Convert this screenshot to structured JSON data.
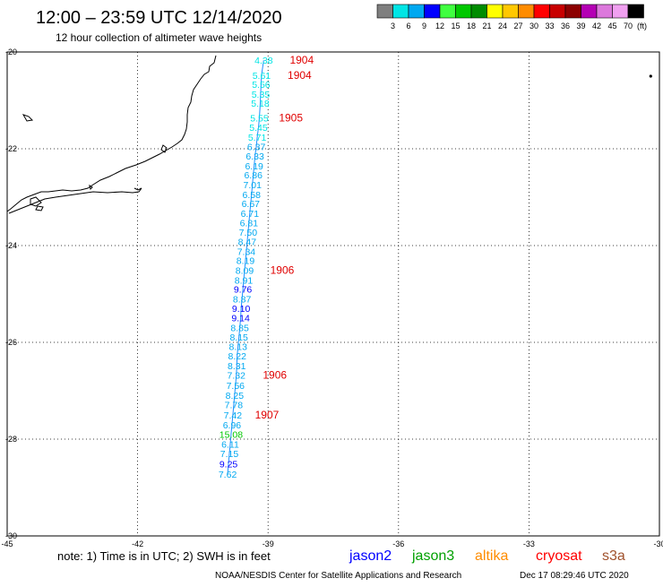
{
  "header": {
    "title": "12:00 – 23:59 UTC 12/14/2020",
    "subtitle": "12 hour collection of altimeter wave heights"
  },
  "legend": {
    "unit": "(ft)",
    "bins": [
      {
        "label": "3",
        "color": "#7f7f7f"
      },
      {
        "label": "6",
        "color": "#00e5e5"
      },
      {
        "label": "9",
        "color": "#00a8f0"
      },
      {
        "label": "12",
        "color": "#0000ff"
      },
      {
        "label": "15",
        "color": "#40ff40"
      },
      {
        "label": "18",
        "color": "#00c800"
      },
      {
        "label": "21",
        "color": "#008c00"
      },
      {
        "label": "24",
        "color": "#ffff00"
      },
      {
        "label": "27",
        "color": "#ffc800"
      },
      {
        "label": "30",
        "color": "#ff8c00"
      },
      {
        "label": "33",
        "color": "#ff0000"
      },
      {
        "label": "36",
        "color": "#c80000"
      },
      {
        "label": "39",
        "color": "#8c0000"
      },
      {
        "label": "42",
        "color": "#b400b4"
      },
      {
        "label": "45",
        "color": "#dc78dc"
      },
      {
        "label": "70",
        "color": "#f0a0f0"
      },
      {
        "label": "",
        "color": "#000000"
      }
    ]
  },
  "map": {
    "lon_range": [
      -45,
      -30
    ],
    "lat_range": [
      -30,
      -20
    ],
    "lon_ticks": [
      "-45",
      "-42",
      "-39",
      "-36",
      "-33",
      "-30"
    ],
    "lat_ticks": [
      "-20",
      "-22",
      "-24",
      "-26",
      "-28",
      "-30"
    ],
    "coast_color": "#000000",
    "track_color": "#1e90ff",
    "isolated_point": {
      "lon": -30.2,
      "lat": -20.5
    }
  },
  "track_labels": [
    {
      "v": "4.38",
      "lon": -39.1,
      "lat": -20.17,
      "color": "#00e5e5"
    },
    {
      "v": "5.61",
      "lon": -39.15,
      "lat": -20.48,
      "color": "#00e5e5"
    },
    {
      "v": "5.56",
      "lon": -39.16,
      "lat": -20.67,
      "color": "#00e5e5"
    },
    {
      "v": "5.35",
      "lon": -39.17,
      "lat": -20.87,
      "color": "#00e5e5"
    },
    {
      "v": "5.18",
      "lon": -39.18,
      "lat": -21.06,
      "color": "#00e5e5"
    },
    {
      "v": "5.55",
      "lon": -39.2,
      "lat": -21.36,
      "color": "#00e5e5"
    },
    {
      "v": "5.45",
      "lon": -39.22,
      "lat": -21.56,
      "color": "#00e5e5"
    },
    {
      "v": "5.71",
      "lon": -39.25,
      "lat": -21.76,
      "color": "#00e5e5"
    },
    {
      "v": "6.37",
      "lon": -39.27,
      "lat": -21.95,
      "color": "#00a8f0"
    },
    {
      "v": "6.33",
      "lon": -39.3,
      "lat": -22.15,
      "color": "#00a8f0"
    },
    {
      "v": "6.19",
      "lon": -39.32,
      "lat": -22.35,
      "color": "#00a8f0"
    },
    {
      "v": "6.86",
      "lon": -39.34,
      "lat": -22.54,
      "color": "#00a8f0"
    },
    {
      "v": "7.01",
      "lon": -39.36,
      "lat": -22.74,
      "color": "#00a8f0"
    },
    {
      "v": "6.58",
      "lon": -39.38,
      "lat": -22.94,
      "color": "#00a8f0"
    },
    {
      "v": "6.67",
      "lon": -39.4,
      "lat": -23.13,
      "color": "#00a8f0"
    },
    {
      "v": "6.71",
      "lon": -39.42,
      "lat": -23.33,
      "color": "#00a8f0"
    },
    {
      "v": "6.81",
      "lon": -39.44,
      "lat": -23.53,
      "color": "#00a8f0"
    },
    {
      "v": "7.50",
      "lon": -39.46,
      "lat": -23.72,
      "color": "#00a8f0"
    },
    {
      "v": "8.47",
      "lon": -39.48,
      "lat": -23.92,
      "color": "#00a8f0"
    },
    {
      "v": "7.34",
      "lon": -39.5,
      "lat": -24.12,
      "color": "#00a8f0"
    },
    {
      "v": "8.19",
      "lon": -39.52,
      "lat": -24.31,
      "color": "#00a8f0"
    },
    {
      "v": "8.09",
      "lon": -39.54,
      "lat": -24.51,
      "color": "#00a8f0"
    },
    {
      "v": "8.91",
      "lon": -39.56,
      "lat": -24.71,
      "color": "#00a8f0"
    },
    {
      "v": "9.76",
      "lon": -39.58,
      "lat": -24.9,
      "color": "#0000ff"
    },
    {
      "v": "8.87",
      "lon": -39.6,
      "lat": -25.1,
      "color": "#00a8f0"
    },
    {
      "v": "9.10",
      "lon": -39.62,
      "lat": -25.3,
      "color": "#0000ff"
    },
    {
      "v": "9.14",
      "lon": -39.63,
      "lat": -25.49,
      "color": "#0000ff"
    },
    {
      "v": "8.85",
      "lon": -39.65,
      "lat": -25.69,
      "color": "#00a8f0"
    },
    {
      "v": "8.15",
      "lon": -39.67,
      "lat": -25.89,
      "color": "#00a8f0"
    },
    {
      "v": "8.13",
      "lon": -39.69,
      "lat": -26.08,
      "color": "#00a8f0"
    },
    {
      "v": "8.22",
      "lon": -39.71,
      "lat": -26.28,
      "color": "#00a8f0"
    },
    {
      "v": "8.31",
      "lon": -39.72,
      "lat": -26.48,
      "color": "#00a8f0"
    },
    {
      "v": "7.32",
      "lon": -39.73,
      "lat": -26.68,
      "color": "#00a8f0"
    },
    {
      "v": "7.56",
      "lon": -39.75,
      "lat": -26.89,
      "color": "#00a8f0"
    },
    {
      "v": "8.25",
      "lon": -39.77,
      "lat": -27.09,
      "color": "#00a8f0"
    },
    {
      "v": "7.78",
      "lon": -39.79,
      "lat": -27.29,
      "color": "#00a8f0"
    },
    {
      "v": "7.42",
      "lon": -39.81,
      "lat": -27.5,
      "color": "#00a8f0"
    },
    {
      "v": "6.96",
      "lon": -39.83,
      "lat": -27.7,
      "color": "#00a8f0"
    },
    {
      "v": "15.08",
      "lon": -39.85,
      "lat": -27.9,
      "color": "#00c800"
    },
    {
      "v": "6.11",
      "lon": -39.87,
      "lat": -28.1,
      "color": "#00a8f0"
    },
    {
      "v": "7.15",
      "lon": -39.89,
      "lat": -28.3,
      "color": "#00a8f0"
    },
    {
      "v": "9.25",
      "lon": -39.91,
      "lat": -28.51,
      "color": "#0000ff"
    },
    {
      "v": "7.62",
      "lon": -39.93,
      "lat": -28.72,
      "color": "#00a8f0"
    }
  ],
  "time_labels": [
    {
      "t": "1904",
      "lon": -38.5,
      "lat": -20.17
    },
    {
      "t": "1904",
      "lon": -38.55,
      "lat": -20.48
    },
    {
      "t": "1905",
      "lon": -38.75,
      "lat": -21.36
    },
    {
      "t": "1906",
      "lon": -38.95,
      "lat": -24.51
    },
    {
      "t": "1906",
      "lon": -39.12,
      "lat": -26.68
    },
    {
      "t": "1907",
      "lon": -39.3,
      "lat": -27.5
    }
  ],
  "footer": {
    "note": "note: 1) Time is in UTC; 2) SWH is in feet",
    "satellites": [
      {
        "name": "jason2",
        "color": "#0000ff"
      },
      {
        "name": "jason3",
        "color": "#00a000"
      },
      {
        "name": "altika",
        "color": "#ff8c00"
      },
      {
        "name": "cryosat",
        "color": "#ff0000"
      },
      {
        "name": "s3a",
        "color": "#a0522d"
      }
    ],
    "credit": "NOAA/NESDIS Center for Satellite Applications and Research",
    "timestamp": "Dec 17 08:29:46 UTC 2020"
  }
}
